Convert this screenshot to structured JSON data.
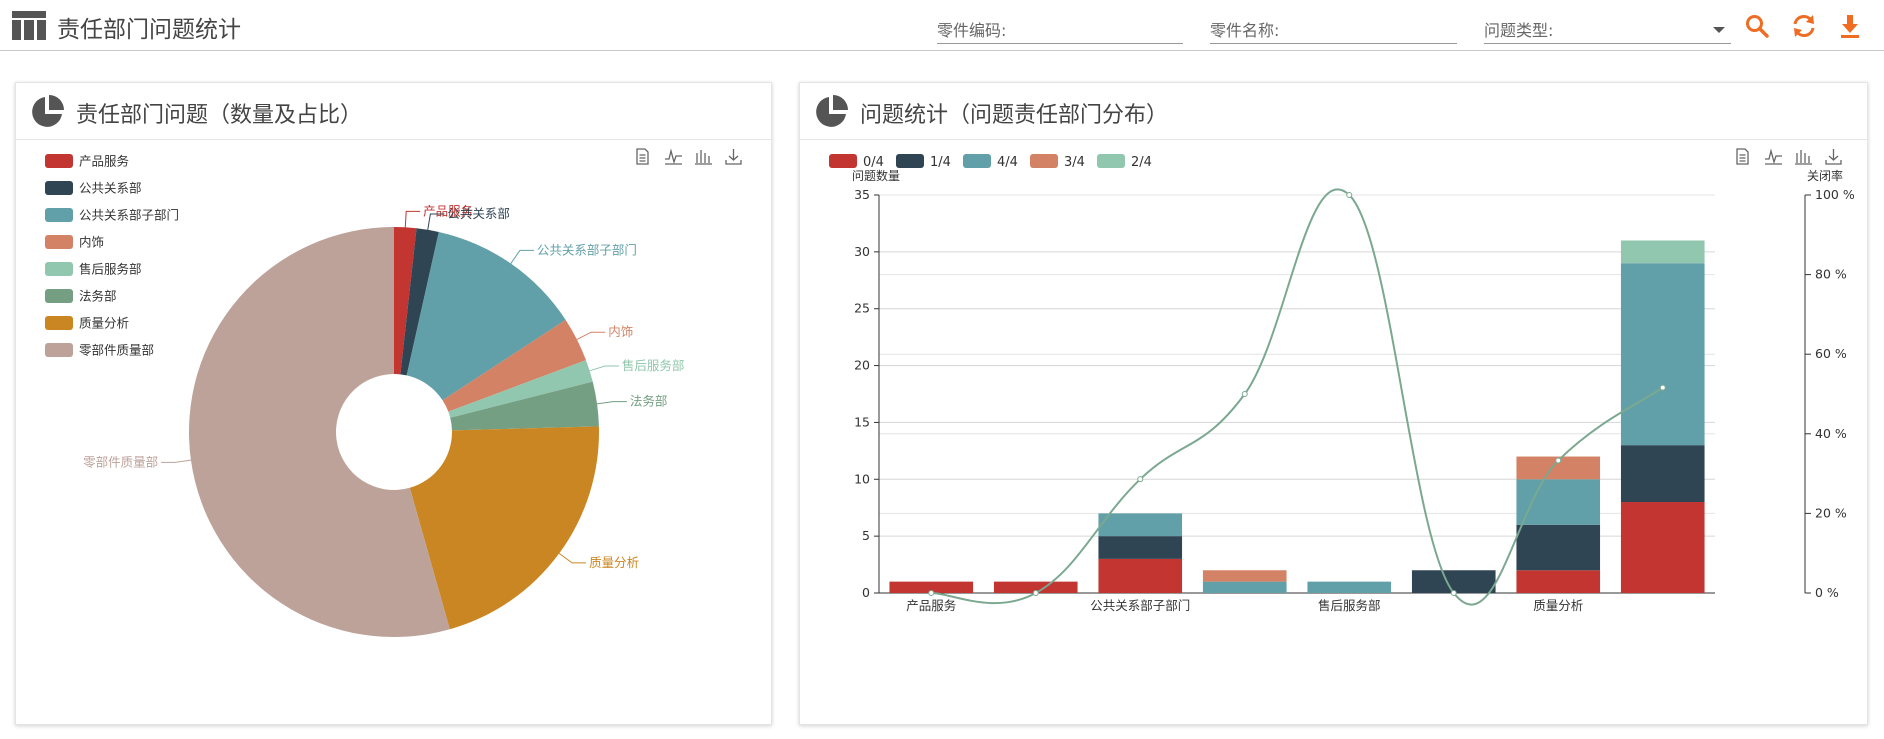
{
  "app": {
    "title": "责任部门问题统计"
  },
  "filters": {
    "part_code": {
      "placeholder": "零件编码:"
    },
    "part_name": {
      "placeholder": "零件名称:"
    },
    "problem_type": {
      "placeholder": "问题类型:"
    }
  },
  "toolbar": {
    "icons": [
      "search-icon",
      "refresh-icon",
      "download-icon"
    ],
    "accent": "#ef6c23"
  },
  "toolbox": {
    "icons": [
      "data-view-icon",
      "line-chart-icon",
      "bar-chart-icon",
      "save-image-icon"
    ]
  },
  "left_panel": {
    "title": "责任部门问题（数量及占比）"
  },
  "right_panel": {
    "title": "问题统计（问题责任部门分布）"
  },
  "chart_data": [
    {
      "type": "pie",
      "donut": true,
      "legend_position": "top-left",
      "legend": [
        "产品服务",
        "公共关系部",
        "公共关系部子部门",
        "内饰",
        "售后服务部",
        "法务部",
        "质量分析",
        "零部件质量部"
      ],
      "slices": [
        {
          "name": "产品服务",
          "value": 1,
          "color": "#c23531"
        },
        {
          "name": "公共关系部",
          "value": 1,
          "color": "#2f4554"
        },
        {
          "name": "公共关系部子部门",
          "value": 7,
          "color": "#61a0a8"
        },
        {
          "name": "内饰",
          "value": 2,
          "color": "#d48265"
        },
        {
          "name": "售后服务部",
          "value": 1,
          "color": "#91c7ae"
        },
        {
          "name": "法务部",
          "value": 2,
          "color": "#749f83"
        },
        {
          "name": "质量分析",
          "value": 12,
          "color": "#ca8622"
        },
        {
          "name": "零部件质量部",
          "value": 31,
          "color": "#bda29a"
        }
      ]
    },
    {
      "type": "bar",
      "stacked": true,
      "legend_position": "top-left",
      "categories": [
        "产品服务",
        "公共关系部",
        "公共关系部子部门",
        "内饰",
        "售后服务部",
        "法务部",
        "质量分析",
        "零部件质量部"
      ],
      "x_tick_labels": [
        "产品服务",
        "",
        "公共关系部子部门",
        "",
        "售后服务部",
        "",
        "质量分析",
        ""
      ],
      "series": [
        {
          "name": "0/4",
          "color": "#c23531",
          "values": [
            1,
            1,
            3,
            0,
            0,
            0,
            2,
            8
          ]
        },
        {
          "name": "1/4",
          "color": "#2f4554",
          "values": [
            0,
            0,
            2,
            0,
            0,
            2,
            4,
            5
          ]
        },
        {
          "name": "4/4",
          "color": "#61a0a8",
          "values": [
            0,
            0,
            2,
            1,
            1,
            0,
            4,
            16
          ]
        },
        {
          "name": "3/4",
          "color": "#d48265",
          "values": [
            0,
            0,
            0,
            1,
            0,
            0,
            2,
            0
          ]
        },
        {
          "name": "2/4",
          "color": "#91c7ae",
          "values": [
            0,
            0,
            0,
            0,
            0,
            0,
            0,
            2
          ]
        }
      ],
      "ylabel": "问题数量",
      "ylim": [
        0,
        35
      ],
      "yticks": [
        0,
        5,
        10,
        15,
        20,
        25,
        30,
        35
      ],
      "y2label": "关闭率",
      "y2lim": [
        0,
        100
      ],
      "y2ticks": [
        "0 %",
        "20 %",
        "40 %",
        "60 %",
        "80 %",
        "100 %"
      ],
      "grid": true,
      "line": {
        "name": "关闭率",
        "color": "#7ba890",
        "values": [
          0,
          0,
          28.6,
          50,
          100,
          0,
          33.3,
          51.6
        ]
      }
    }
  ]
}
